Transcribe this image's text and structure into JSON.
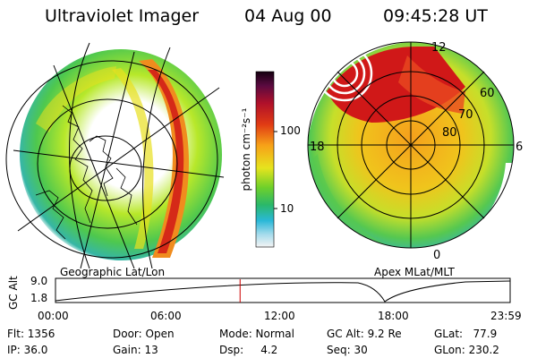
{
  "header": {
    "instrument": "Ultraviolet Imager",
    "date": "04 Aug 00",
    "time": "09:45:28 UT"
  },
  "left_panel": {
    "label": "Geographic Lat/Lon"
  },
  "right_panel": {
    "label": "Apex MLat/MLT",
    "mlt_labels": [
      "12",
      "18",
      "6",
      "0"
    ],
    "lat_labels": [
      "60",
      "70",
      "80"
    ]
  },
  "colorbar": {
    "label": "photon cm⁻²s⁻¹",
    "scale": "log",
    "ticks": [
      "100",
      "10"
    ]
  },
  "timeline": {
    "ylabel": "GC Alt",
    "ytick_top": "9.0",
    "ytick_bottom": "1.8",
    "xticks": [
      "00:00",
      "06:00",
      "12:00",
      "18:00",
      "23:59"
    ],
    "current_time_fraction": 0.406
  },
  "info": {
    "flt": "Flt: 1356",
    "ip": "IP: 36.0",
    "door": "Door: Open",
    "gain": "Gain: 13",
    "mode": "Mode: Normal",
    "dsp": "Dsp:     4.2",
    "gcalt": "GC Alt: 9.2 Re",
    "seq": "Seq: 30",
    "glat": "GLat:   77.9",
    "glon": "GLon: 230.2"
  },
  "colors": {
    "cursor": "#cc0000",
    "outer_green": "#3fbf3f",
    "yellow": "#e8e020",
    "orange": "#f08c1e",
    "red": "#d01818"
  }
}
